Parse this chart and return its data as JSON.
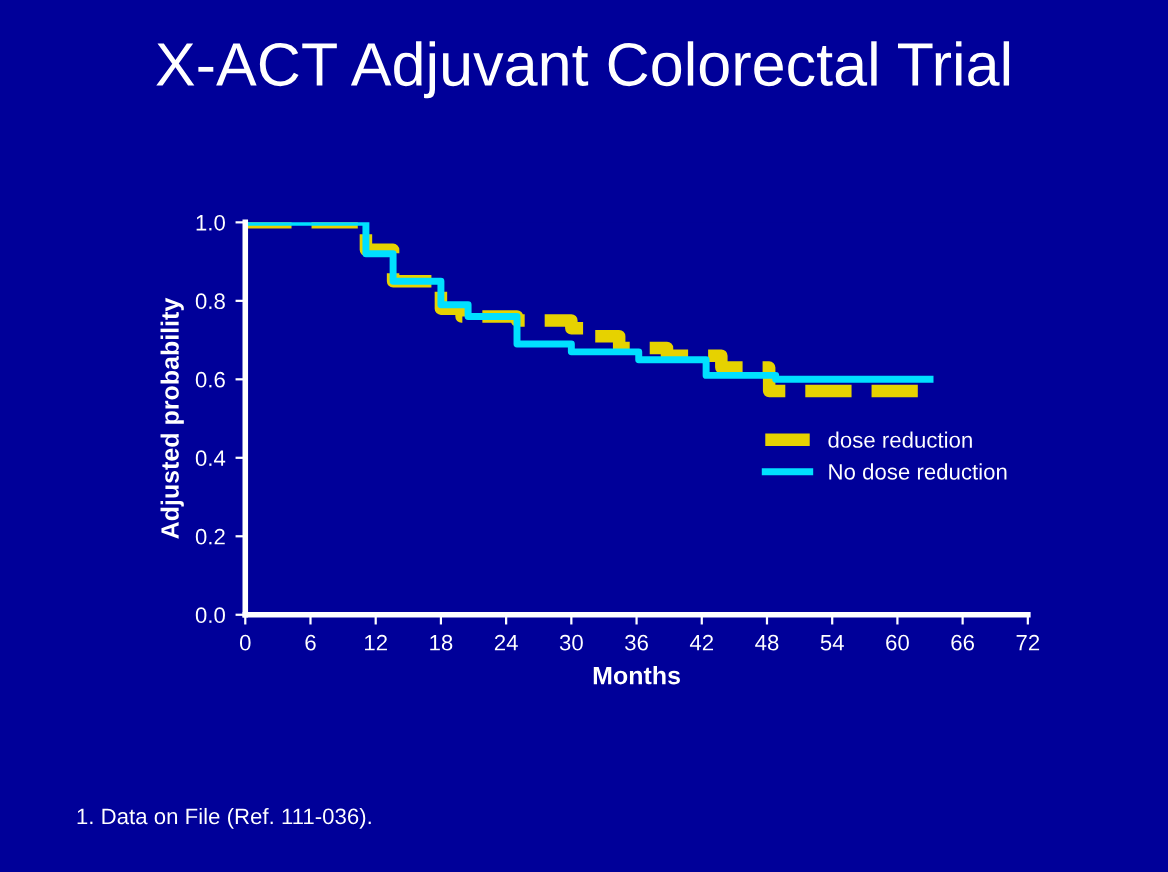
{
  "chart_data": {
    "type": "step",
    "title": "X-ACT Adjuvant Colorectal Trial",
    "xlabel": "Months",
    "ylabel": "Adjusted probability",
    "xlim": [
      0,
      72
    ],
    "xticks": [
      0,
      6,
      12,
      18,
      24,
      30,
      36,
      42,
      48,
      54,
      60,
      66,
      72
    ],
    "ylim": [
      0,
      1
    ],
    "yticks": [
      {
        "value": 0,
        "label": "0.0"
      },
      0.2,
      0.4,
      0.6,
      0.8,
      {
        "value": 1,
        "label": "1.0"
      }
    ],
    "legend": "right",
    "grid": false,
    "series": [
      {
        "name": "dose reduction",
        "color": "#e6d200",
        "line_style": "dashed",
        "x": [
          0,
          6.1,
          11.1,
          13.6,
          18,
          19.9,
          25,
          30,
          31.9,
          34.4,
          38.8,
          43.8,
          48.2,
          62
        ],
        "values": [
          1.0,
          1.0,
          0.93,
          0.85,
          0.78,
          0.76,
          0.75,
          0.73,
          0.71,
          0.68,
          0.66,
          0.63,
          0.57,
          0.57
        ]
      },
      {
        "name": "No dose reduction",
        "color": "#00e0ff",
        "line_style": "solid",
        "x": [
          0,
          5.8,
          11.1,
          13.6,
          18,
          20.5,
          25,
          30,
          36.2,
          42.4,
          48.8,
          63
        ],
        "values": [
          1.0,
          1.0,
          0.92,
          0.85,
          0.79,
          0.76,
          0.69,
          0.67,
          0.65,
          0.61,
          0.6,
          0.6
        ]
      }
    ],
    "annotations": [
      "1. Data on File (Ref. 111-036)."
    ]
  }
}
